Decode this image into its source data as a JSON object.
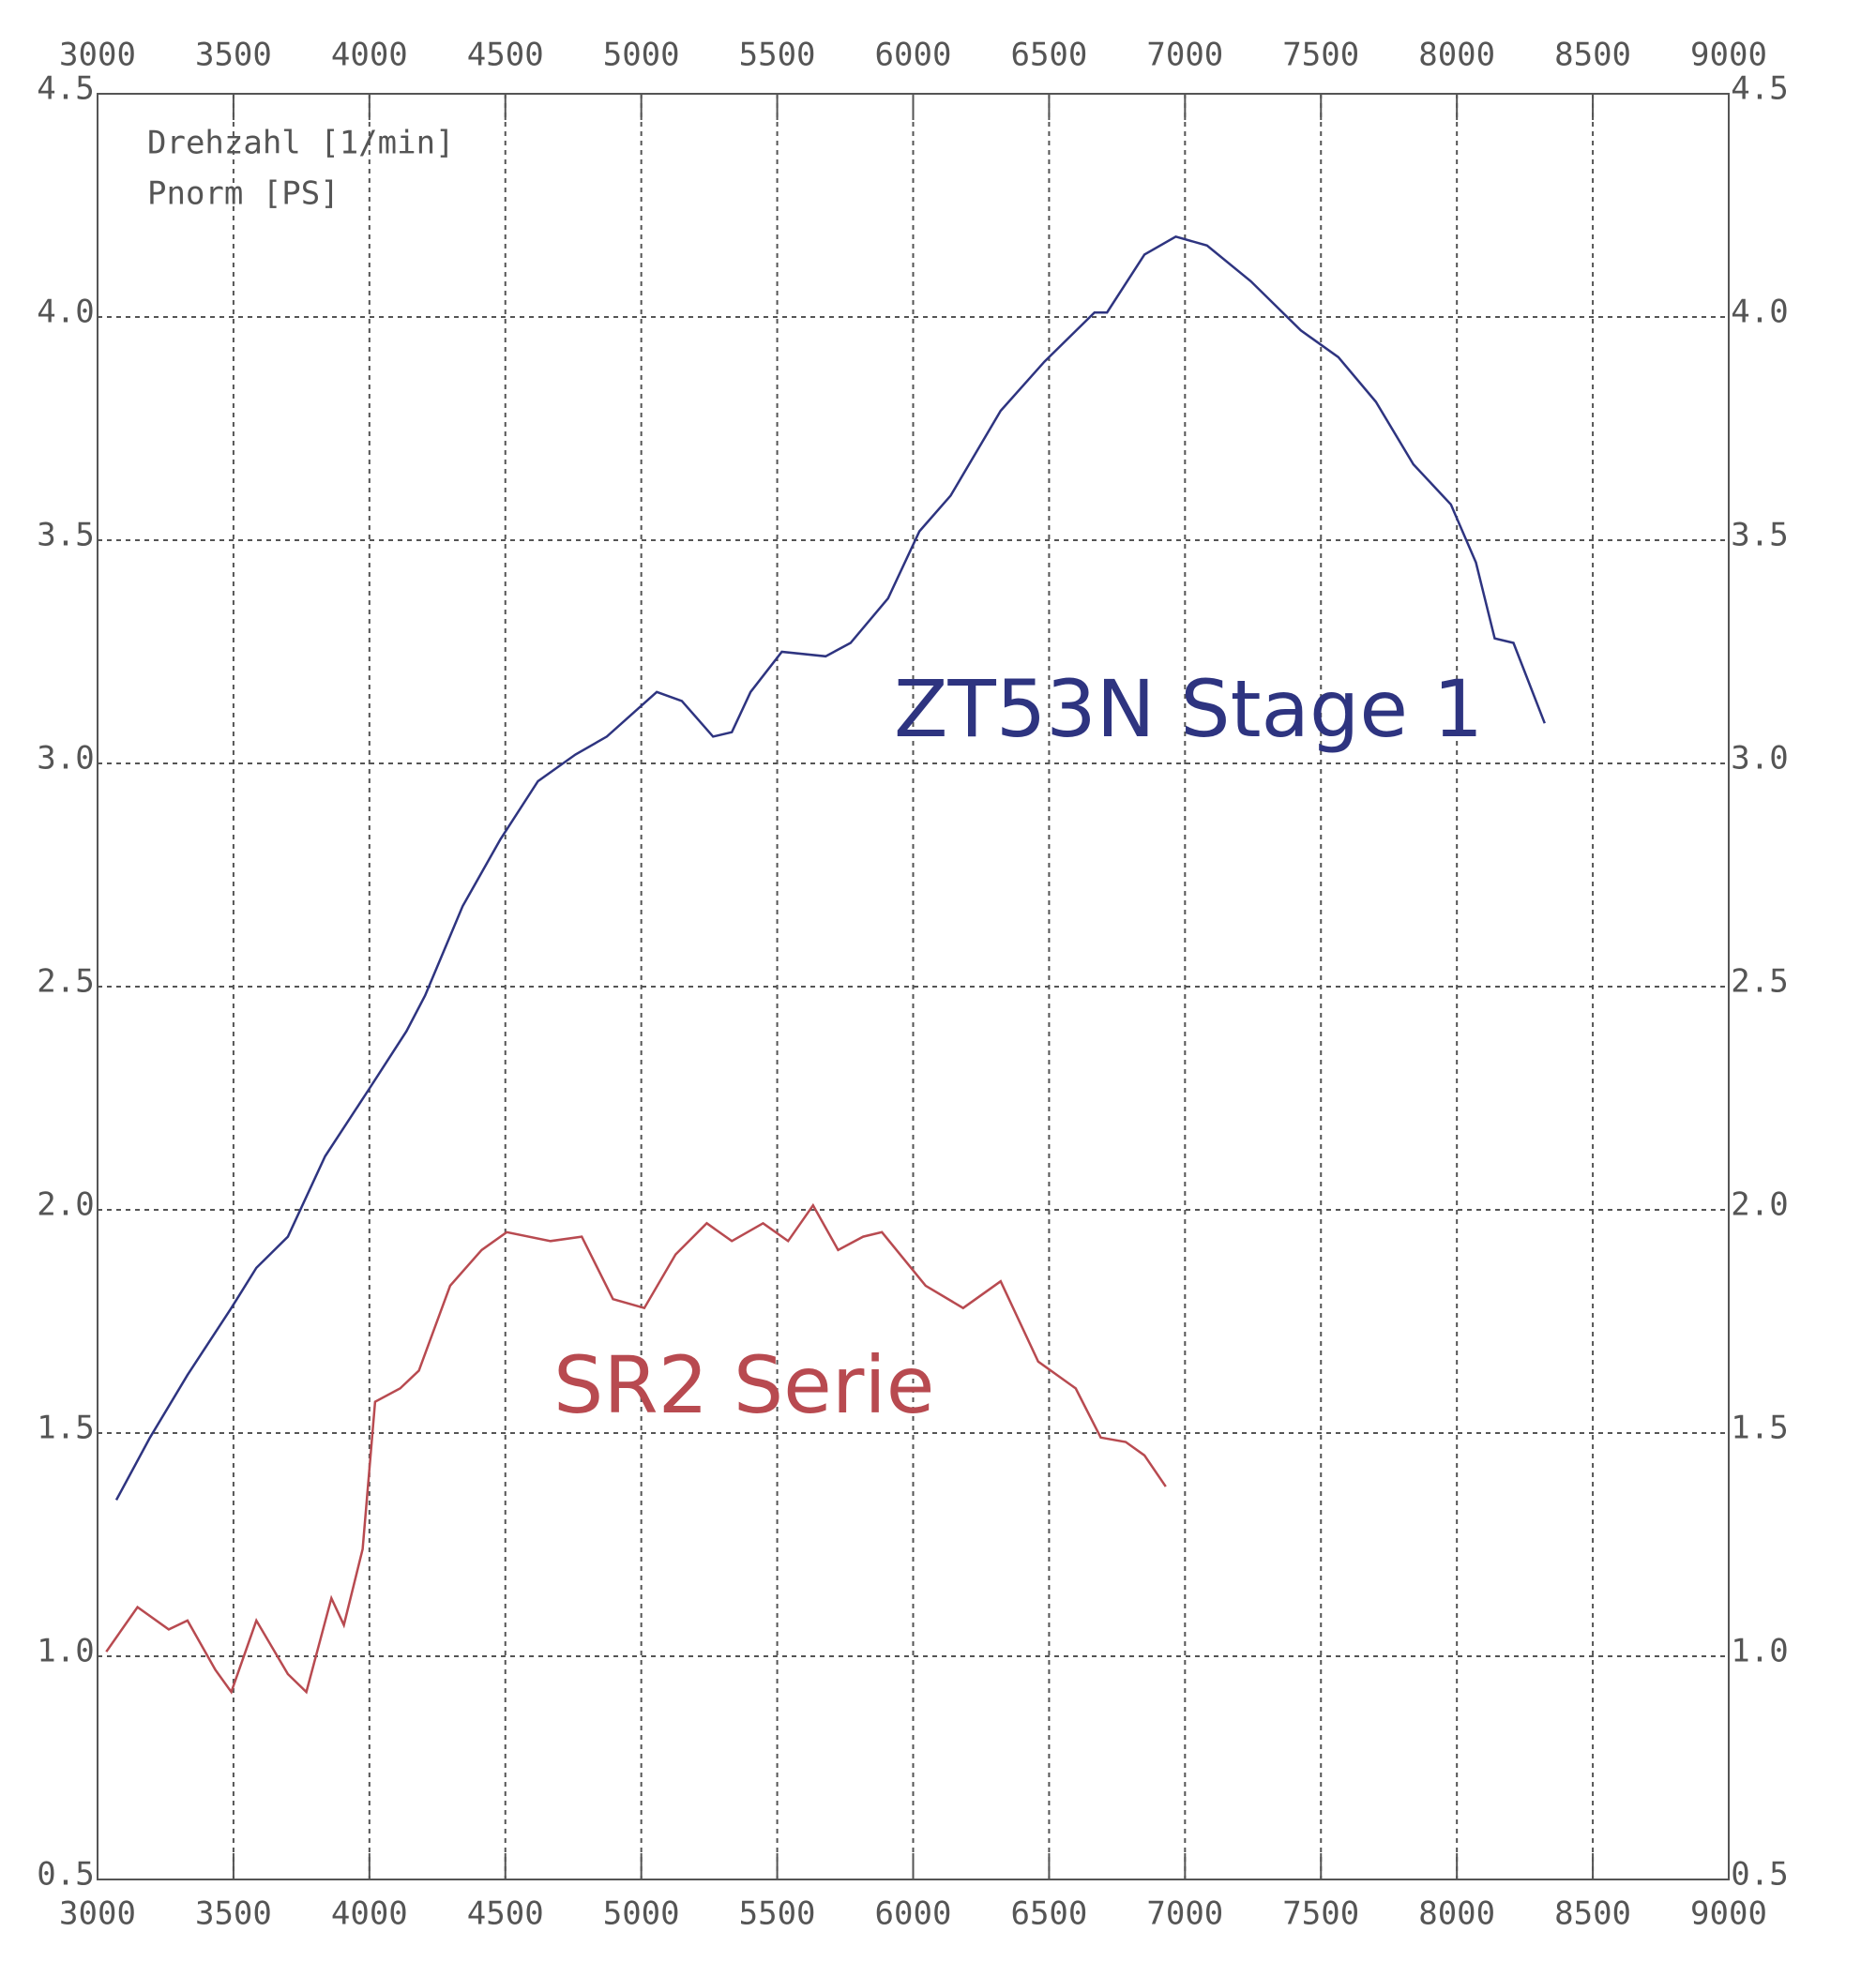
{
  "chart_data": {
    "type": "line",
    "legend_texts": [
      "Drehzahl [1/min]",
      "Pnorm [PS]"
    ],
    "annotations": [
      "ZT53N Stage 1",
      "SR2 Serie"
    ],
    "xlim": [
      3000,
      9000
    ],
    "xticks": [
      3000,
      3500,
      4000,
      4500,
      5000,
      5500,
      6000,
      6500,
      7000,
      7500,
      8000,
      8500,
      9000
    ],
    "ylim": [
      0.5,
      4.5
    ],
    "yticks": [
      0.5,
      {
        "value": 1,
        "label": "1.0"
      },
      1.5,
      {
        "value": 2,
        "label": "2.0"
      },
      2.5,
      {
        "value": 3,
        "label": "3.0"
      },
      3.5,
      {
        "value": 4,
        "label": "4.0"
      },
      4.5
    ],
    "grid": true,
    "series": [
      {
        "name": "ZT53N Stage 1",
        "color": "#2e3480",
        "x": [
          3069,
          3193,
          3331,
          3492,
          3584,
          3700,
          3837,
          3998,
          4136,
          4205,
          4343,
          4482,
          4620,
          4758,
          4873,
          5057,
          5149,
          5264,
          5333,
          5402,
          5517,
          5678,
          5770,
          5908,
          6023,
          6138,
          6322,
          6483,
          6667,
          6713,
          6851,
          6966,
          7081,
          7242,
          7426,
          7564,
          7702,
          7840,
          7978,
          8070,
          8139,
          8208,
          8323
        ],
        "values": [
          1.35,
          1.49,
          1.63,
          1.78,
          1.87,
          1.94,
          2.12,
          2.27,
          2.4,
          2.48,
          2.68,
          2.83,
          2.96,
          3.02,
          3.06,
          3.16,
          3.14,
          3.06,
          3.07,
          3.16,
          3.25,
          3.24,
          3.27,
          3.37,
          3.52,
          3.6,
          3.79,
          3.9,
          4.01,
          4.01,
          4.14,
          4.18,
          4.16,
          4.08,
          3.97,
          3.91,
          3.81,
          3.67,
          3.58,
          3.45,
          3.28,
          3.27,
          3.09
        ]
      },
      {
        "name": "SR2 Serie",
        "color": "#b84a50",
        "x": [
          3032,
          3147,
          3262,
          3331,
          3433,
          3492,
          3584,
          3700,
          3768,
          3860,
          3906,
          3975,
          4021,
          4113,
          4182,
          4297,
          4413,
          4505,
          4666,
          4781,
          4896,
          5011,
          5126,
          5241,
          5333,
          5448,
          5540,
          5632,
          5724,
          5816,
          5885,
          6046,
          6184,
          6322,
          6460,
          6598,
          6690,
          6782,
          6851,
          6929
        ],
        "values": [
          1.01,
          1.11,
          1.06,
          1.08,
          0.97,
          0.92,
          1.08,
          0.96,
          0.92,
          1.13,
          1.07,
          1.24,
          1.57,
          1.6,
          1.64,
          1.83,
          1.91,
          1.95,
          1.93,
          1.94,
          1.8,
          1.78,
          1.9,
          1.97,
          1.93,
          1.97,
          1.93,
          2.01,
          1.91,
          1.94,
          1.95,
          1.83,
          1.78,
          1.84,
          1.66,
          1.6,
          1.49,
          1.48,
          1.45,
          1.38
        ]
      }
    ]
  }
}
